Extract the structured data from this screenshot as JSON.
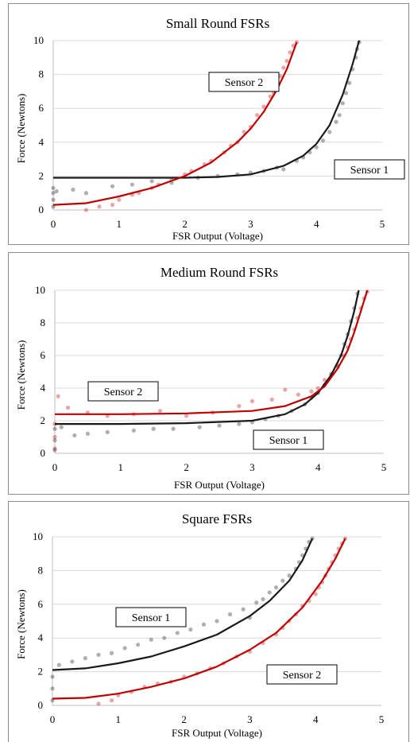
{
  "chart_data": [
    {
      "type": "scatter",
      "title": "Small Round FSRs",
      "xlabel": "FSR Output (Voltage)",
      "ylabel": "Force (Newtons)",
      "xlim": [
        0,
        5
      ],
      "ylim": [
        0,
        10
      ],
      "xticks": [
        "0",
        "1",
        "2",
        "3",
        "4",
        "5"
      ],
      "yticks": [
        "0",
        "2",
        "4",
        "6",
        "8",
        "10"
      ],
      "grid": "horizontal",
      "series": [
        {
          "name": "Sensor 1",
          "color": "#1a1a1a",
          "fit": {
            "x": [
              0.0,
              1.0,
              2.0,
              2.5,
              3.0,
              3.5,
              3.8,
              4.0,
              4.2,
              4.4,
              4.55,
              4.65
            ],
            "y": [
              1.9,
              1.9,
              1.9,
              1.95,
              2.1,
              2.6,
              3.2,
              3.9,
              5.0,
              6.8,
              8.6,
              10.0
            ]
          },
          "points": {
            "x": [
              0.0,
              0.0,
              0.0,
              0.0,
              0.05,
              0.3,
              0.5,
              0.9,
              1.2,
              1.5,
              1.8,
              2.2,
              2.5,
              2.8,
              3.0,
              3.2,
              3.4,
              3.5,
              3.7,
              3.8,
              3.9,
              4.0,
              4.1,
              4.2,
              4.3,
              4.35,
              4.4,
              4.45,
              4.5,
              4.55,
              4.6,
              4.62,
              4.65
            ],
            "y": [
              0.2,
              0.6,
              1.0,
              1.3,
              1.1,
              1.2,
              1.0,
              1.4,
              1.5,
              1.7,
              1.6,
              1.9,
              2.0,
              2.1,
              2.2,
              2.3,
              2.5,
              2.4,
              2.9,
              3.1,
              3.4,
              3.7,
              4.1,
              4.6,
              5.2,
              5.6,
              6.3,
              6.9,
              7.5,
              8.3,
              9.0,
              9.5,
              9.9
            ]
          }
        },
        {
          "name": "Sensor 2",
          "color": "#c00000",
          "fit": {
            "x": [
              0.0,
              0.5,
              1.0,
              1.5,
              2.0,
              2.4,
              2.8,
              3.0,
              3.2,
              3.4,
              3.55,
              3.7
            ],
            "y": [
              0.3,
              0.4,
              0.8,
              1.3,
              2.0,
              2.8,
              4.0,
              4.8,
              5.8,
              7.1,
              8.3,
              9.9
            ]
          },
          "points": {
            "x": [
              0.5,
              0.7,
              0.9,
              1.0,
              1.2,
              1.3,
              1.5,
              1.6,
              1.8,
              2.0,
              2.1,
              2.3,
              2.4,
              2.6,
              2.7,
              2.8,
              2.9,
              3.0,
              3.1,
              3.2,
              3.3,
              3.35,
              3.4,
              3.45,
              3.5,
              3.55,
              3.6,
              3.65,
              3.7
            ],
            "y": [
              0.0,
              0.2,
              0.3,
              0.6,
              0.9,
              1.0,
              1.3,
              1.5,
              1.8,
              2.1,
              2.3,
              2.7,
              2.9,
              3.4,
              3.8,
              4.0,
              4.6,
              4.9,
              5.6,
              6.1,
              6.7,
              6.9,
              7.5,
              7.9,
              8.4,
              8.8,
              9.3,
              9.7,
              9.9
            ]
          }
        }
      ],
      "annotations": [
        {
          "text": "Sensor 2",
          "series": "Sensor 2"
        },
        {
          "text": "Sensor 1",
          "series": "Sensor 1"
        }
      ]
    },
    {
      "type": "scatter",
      "title": "Medium Round FSRs",
      "xlabel": "FSR Output (Voltage)",
      "ylabel": "Force (Newtons)",
      "xlim": [
        0,
        5
      ],
      "ylim": [
        0,
        10
      ],
      "xticks": [
        "0",
        "1",
        "2",
        "3",
        "4",
        "5"
      ],
      "yticks": [
        "0",
        "2",
        "4",
        "6",
        "8",
        "10"
      ],
      "grid": "horizontal",
      "series": [
        {
          "name": "Sensor 1",
          "color": "#1a1a1a",
          "fit": {
            "x": [
              0.0,
              1.0,
              2.0,
              3.0,
              3.5,
              3.8,
              4.0,
              4.2,
              4.35,
              4.45,
              4.55,
              4.62
            ],
            "y": [
              1.8,
              1.8,
              1.85,
              2.0,
              2.4,
              3.0,
              3.7,
              4.8,
              6.0,
              7.2,
              8.7,
              10.0
            ]
          },
          "points": {
            "x": [
              0.0,
              0.0,
              0.0,
              0.1,
              0.3,
              0.5,
              0.8,
              1.2,
              1.5,
              1.8,
              2.2,
              2.5,
              2.8,
              3.0,
              3.2,
              3.4,
              3.6,
              3.8,
              3.9,
              4.0,
              4.1,
              4.2,
              4.3,
              4.35,
              4.4,
              4.45,
              4.5,
              4.55,
              4.6
            ],
            "y": [
              0.2,
              0.8,
              1.5,
              1.6,
              1.1,
              1.2,
              1.3,
              1.4,
              1.5,
              1.5,
              1.6,
              1.7,
              1.8,
              1.9,
              2.1,
              2.3,
              2.6,
              3.0,
              3.4,
              3.7,
              4.2,
              4.8,
              5.4,
              6.0,
              6.7,
              7.3,
              8.1,
              8.9,
              9.8
            ]
          }
        },
        {
          "name": "Sensor 2",
          "color": "#c00000",
          "fit": {
            "x": [
              0.0,
              1.0,
              2.0,
              3.0,
              3.5,
              3.9,
              4.1,
              4.3,
              4.45,
              4.55,
              4.65,
              4.75
            ],
            "y": [
              2.4,
              2.4,
              2.45,
              2.6,
              2.9,
              3.5,
              4.1,
              5.2,
              6.3,
              7.4,
              8.7,
              10.0
            ]
          },
          "points": {
            "x": [
              0.0,
              0.0,
              0.0,
              0.05,
              0.2,
              0.5,
              0.8,
              1.2,
              1.6,
              2.0,
              2.4,
              2.8,
              3.0,
              3.3,
              3.5,
              3.7,
              3.9,
              4.0,
              4.1,
              4.2,
              4.3,
              4.4,
              4.45,
              4.5,
              4.55,
              4.6,
              4.65,
              4.7,
              4.75
            ],
            "y": [
              0.3,
              1.0,
              1.8,
              3.5,
              2.8,
              2.5,
              2.3,
              2.4,
              2.6,
              2.3,
              2.5,
              2.9,
              3.2,
              3.3,
              3.9,
              3.6,
              3.8,
              4.0,
              4.5,
              4.9,
              5.3,
              6.0,
              6.5,
              7.0,
              7.6,
              8.3,
              8.9,
              9.5,
              9.9
            ]
          }
        }
      ],
      "annotations": [
        {
          "text": "Sensor 2",
          "series": "Sensor 2"
        },
        {
          "text": "Sensor 1",
          "series": "Sensor 1"
        }
      ]
    },
    {
      "type": "scatter",
      "title": "Square FSRs",
      "xlabel": "FSR Output (Voltage)",
      "ylabel": "Force (Newtons)",
      "xlim": [
        0,
        5
      ],
      "ylim": [
        0,
        10
      ],
      "xticks": [
        "0",
        "1",
        "2",
        "3",
        "4",
        "5"
      ],
      "yticks": [
        "0",
        "2",
        "4",
        "6",
        "8",
        "10"
      ],
      "grid": "horizontal",
      "series": [
        {
          "name": "Sensor 1",
          "color": "#1a1a1a",
          "fit": {
            "x": [
              0.0,
              0.5,
              1.0,
              1.5,
              2.0,
              2.5,
              3.0,
              3.3,
              3.6,
              3.8,
              3.95
            ],
            "y": [
              2.1,
              2.2,
              2.5,
              2.9,
              3.5,
              4.2,
              5.3,
              6.2,
              7.4,
              8.6,
              9.9
            ]
          },
          "points": {
            "x": [
              0.0,
              0.0,
              0.0,
              0.1,
              0.3,
              0.5,
              0.7,
              0.9,
              1.1,
              1.3,
              1.5,
              1.7,
              1.9,
              2.1,
              2.3,
              2.5,
              2.7,
              2.9,
              3.0,
              3.1,
              3.2,
              3.3,
              3.4,
              3.5,
              3.6,
              3.7,
              3.75,
              3.8,
              3.85,
              3.9,
              3.95
            ],
            "y": [
              0.3,
              1.0,
              1.7,
              2.4,
              2.6,
              2.8,
              3.0,
              3.1,
              3.4,
              3.6,
              3.9,
              4.0,
              4.3,
              4.5,
              4.8,
              5.0,
              5.4,
              5.7,
              5.2,
              6.1,
              6.3,
              6.7,
              7.0,
              7.4,
              7.7,
              8.1,
              8.5,
              8.9,
              9.3,
              9.7,
              9.9
            ]
          }
        },
        {
          "name": "Sensor 2",
          "color": "#c00000",
          "fit": {
            "x": [
              0.0,
              0.5,
              1.0,
              1.5,
              2.0,
              2.5,
              3.0,
              3.4,
              3.8,
              4.1,
              4.3,
              4.45
            ],
            "y": [
              0.4,
              0.45,
              0.7,
              1.1,
              1.6,
              2.3,
              3.3,
              4.3,
              5.8,
              7.4,
              8.7,
              9.9
            ]
          },
          "points": {
            "x": [
              0.7,
              0.9,
              1.0,
              1.2,
              1.4,
              1.6,
              1.8,
              2.0,
              2.2,
              2.4,
              2.6,
              2.8,
              3.0,
              3.2,
              3.4,
              3.5,
              3.6,
              3.7,
              3.8,
              3.9,
              4.0,
              4.05,
              4.1,
              4.15,
              4.2,
              4.25,
              4.3,
              4.35,
              4.4,
              4.45
            ],
            "y": [
              0.1,
              0.3,
              0.6,
              0.8,
              1.1,
              1.3,
              1.4,
              1.7,
              1.9,
              2.2,
              2.5,
              2.9,
              3.2,
              3.7,
              4.2,
              4.6,
              5.0,
              5.4,
              5.9,
              6.2,
              6.6,
              7.0,
              7.3,
              7.7,
              8.1,
              8.5,
              8.9,
              9.3,
              9.6,
              9.9
            ]
          }
        }
      ],
      "annotations": [
        {
          "text": "Sensor 1",
          "series": "Sensor 1"
        },
        {
          "text": "Sensor 2",
          "series": "Sensor 2"
        }
      ]
    }
  ]
}
